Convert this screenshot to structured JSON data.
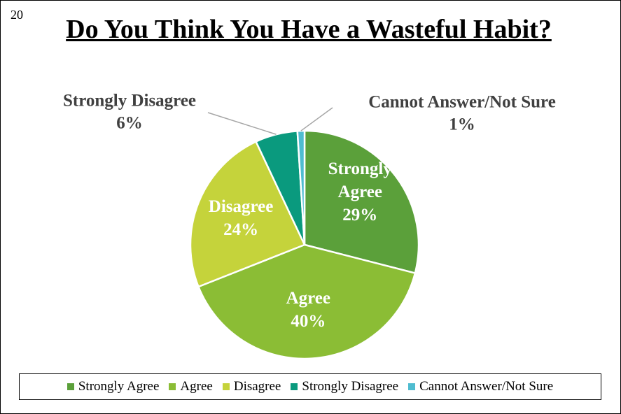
{
  "page_number": "20",
  "colors": {
    "strongly_agree": "#5ba03a",
    "agree": "#8bbd35",
    "disagree": "#c5d33b",
    "strongly_disagree": "#0a9a7e",
    "cannot_answer": "#4fbcd0",
    "label_outside": "#404040",
    "label_inside": "#ffffff",
    "leader_line": "#a6a6a6"
  },
  "chart_data": {
    "type": "pie",
    "title": "Do You Think You Have a Wasteful Habit?",
    "legend_position": "bottom",
    "slices": [
      {
        "name": "Strongly Agree",
        "value": 29,
        "label_lines": [
          "Strongly",
          "Agree",
          "29%"
        ],
        "color_key": "strongly_agree",
        "label_placement": "inside"
      },
      {
        "name": "Agree",
        "value": 40,
        "label_lines": [
          "Agree",
          "40%"
        ],
        "color_key": "agree",
        "label_placement": "inside"
      },
      {
        "name": "Disagree",
        "value": 24,
        "label_lines": [
          "Disagree",
          "24%"
        ],
        "color_key": "disagree",
        "label_placement": "inside"
      },
      {
        "name": "Strongly Disagree",
        "value": 6,
        "label_lines": [
          "Strongly Disagree",
          "6%"
        ],
        "color_key": "strongly_disagree",
        "label_placement": "outside-left"
      },
      {
        "name": "Cannot Answer/Not Sure",
        "value": 1,
        "label_lines": [
          "Cannot Answer/Not Sure",
          "1%"
        ],
        "color_key": "cannot_answer",
        "label_placement": "outside-right"
      }
    ]
  }
}
